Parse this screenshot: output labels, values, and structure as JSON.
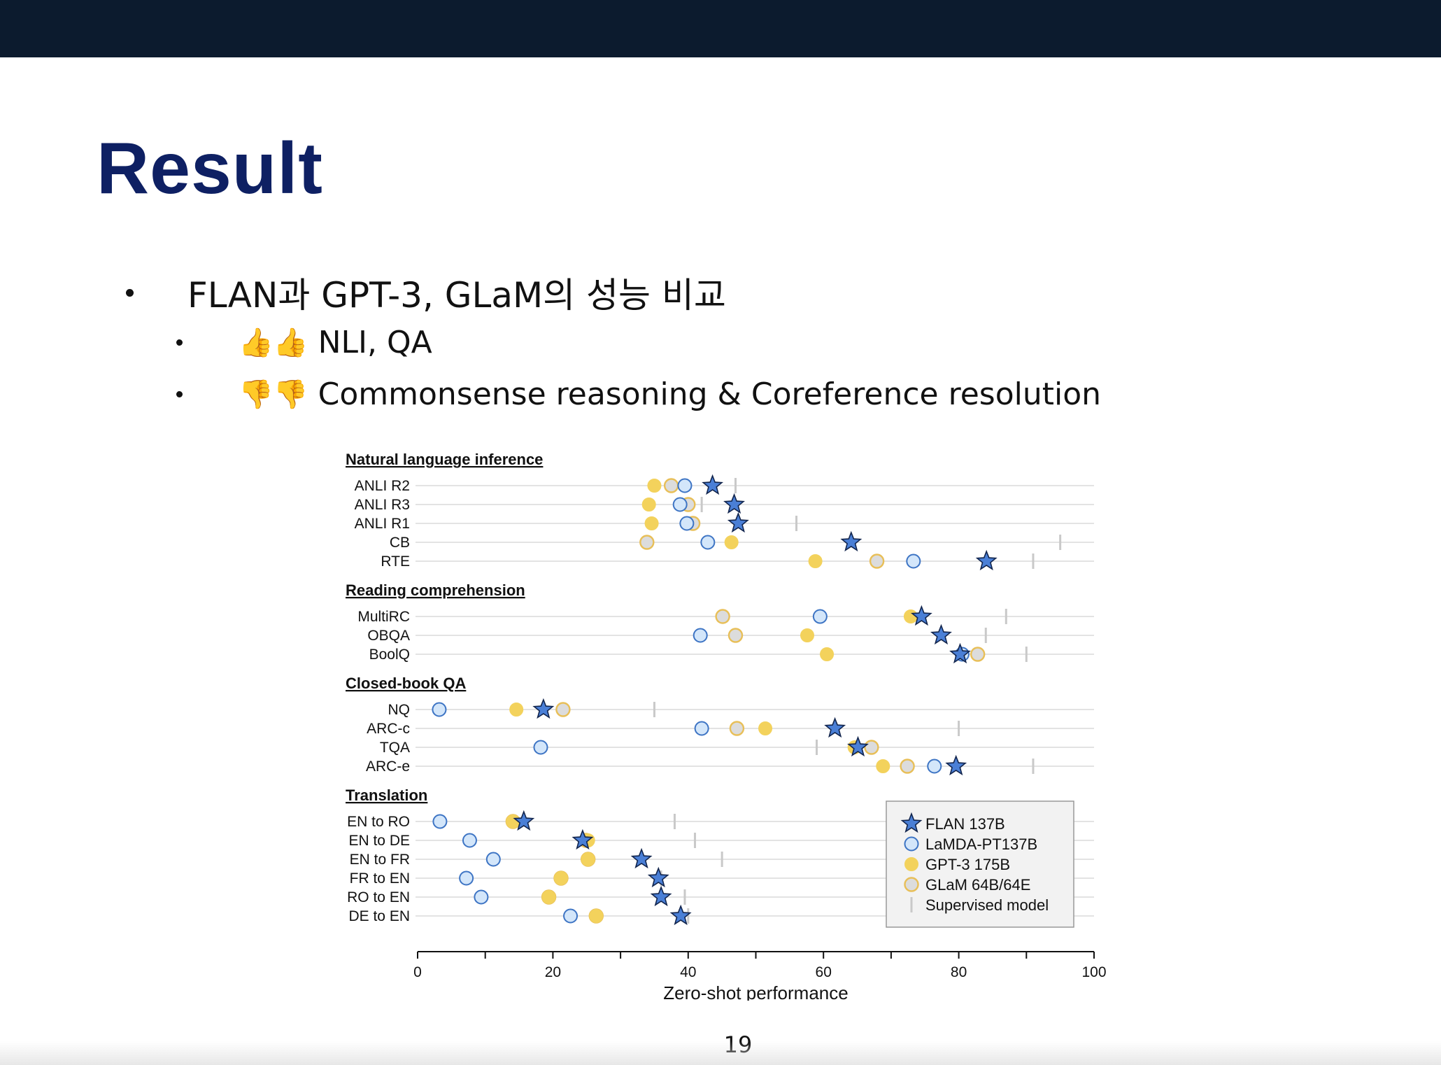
{
  "slide": {
    "title": "Result",
    "bullets": [
      {
        "text": "FLAN과 GPT-3, GLaM의 성능 비교"
      },
      {
        "icon": "thumbs-up-icon",
        "emoji": "👍👍",
        "text": "NLI, QA"
      },
      {
        "icon": "thumbs-down-icon",
        "emoji": "👎👎",
        "text": "Commonsense reasoning & Coreference resolution"
      }
    ],
    "page_number": "19"
  },
  "chart_data": {
    "type": "scatter",
    "xlabel": "Zero-shot performance",
    "xlim": [
      0,
      100
    ],
    "xticks": [
      0,
      20,
      40,
      60,
      80,
      100
    ],
    "series_keys": [
      "flan",
      "lamda",
      "gpt3",
      "glam",
      "supervised"
    ],
    "series": [
      {
        "name": "FLAN 137B",
        "key": "flan",
        "marker": "star",
        "color": "#4a7fd6"
      },
      {
        "name": "LaMDA-PT137B",
        "key": "lamda",
        "marker": "circle-open",
        "color": "#a9cdf2"
      },
      {
        "name": "GPT-3 175B",
        "key": "gpt3",
        "marker": "circle",
        "color": "#f3d25c"
      },
      {
        "name": "GLaM 64B/64E",
        "key": "glam",
        "marker": "circle-tan",
        "color": "#e4d4b0"
      },
      {
        "name": "Supervised model",
        "key": "supervised",
        "marker": "tick",
        "color": "#cccccc"
      }
    ],
    "legend_position": "bottom-right",
    "groups": [
      {
        "title": "Natural language inference",
        "rows": [
          {
            "label": "ANLI R2",
            "flan": 43.6,
            "lamda": 39.5,
            "gpt3": 35.0,
            "glam": 37.5,
            "supervised": 47.0
          },
          {
            "label": "ANLI R3",
            "flan": 46.8,
            "lamda": 38.8,
            "gpt3": 34.2,
            "glam": 40.0,
            "supervised": 42.0
          },
          {
            "label": "ANLI R1",
            "flan": 47.4,
            "lamda": 39.8,
            "gpt3": 34.6,
            "glam": 40.7,
            "supervised": 56.0
          },
          {
            "label": "CB",
            "flan": 64.1,
            "lamda": 42.9,
            "gpt3": 46.4,
            "glam": 33.9,
            "supervised": 95.0
          },
          {
            "label": "RTE",
            "flan": 84.1,
            "lamda": 73.3,
            "gpt3": 58.8,
            "glam": 67.9,
            "supervised": 91.0
          }
        ]
      },
      {
        "title": "Reading comprehension",
        "rows": [
          {
            "label": "MultiRC",
            "flan": 74.5,
            "lamda": 59.5,
            "gpt3": 72.9,
            "glam": 45.1,
            "supervised": 87.0
          },
          {
            "label": "OBQA",
            "flan": 77.4,
            "lamda": 41.8,
            "gpt3": 57.6,
            "glam": 47.0,
            "supervised": 84.0
          },
          {
            "label": "BoolQ",
            "flan": 80.2,
            "lamda": 80.5,
            "gpt3": 60.5,
            "glam": 82.8,
            "supervised": 90.0
          }
        ]
      },
      {
        "title": "Closed-book QA",
        "rows": [
          {
            "label": "NQ",
            "flan": 18.6,
            "lamda": 3.2,
            "gpt3": 14.6,
            "glam": 21.5,
            "supervised": 35.0
          },
          {
            "label": "ARC-c",
            "flan": 61.7,
            "lamda": 42.0,
            "gpt3": 51.4,
            "glam": 47.2,
            "supervised": 80.0
          },
          {
            "label": "TQA",
            "flan": 65.1,
            "lamda": 18.2,
            "gpt3": 64.6,
            "glam": 67.1,
            "supervised": 59.0
          },
          {
            "label": "ARC-e",
            "flan": 79.6,
            "lamda": 76.4,
            "gpt3": 68.8,
            "glam": 72.4,
            "supervised": 91.0
          }
        ]
      },
      {
        "title": "Translation",
        "rows": [
          {
            "label": "EN to RO",
            "flan": 15.7,
            "lamda": 3.3,
            "gpt3": 14.1,
            "glam": 14.1,
            "supervised": 38.0
          },
          {
            "label": "EN to DE",
            "flan": 24.4,
            "lamda": 7.7,
            "gpt3": 25.2,
            "glam": 24.9,
            "supervised": 41.0
          },
          {
            "label": "EN to FR",
            "flan": 33.1,
            "lamda": 11.2,
            "gpt3": 25.2,
            "glam": 25.2,
            "supervised": 45.0
          },
          {
            "label": "FR to EN",
            "flan": 35.6,
            "lamda": 7.2,
            "gpt3": 21.2,
            "glam": 21.2,
            "supervised": 36.0
          },
          {
            "label": "RO to EN",
            "flan": 36.0,
            "lamda": 9.4,
            "gpt3": 19.4,
            "glam": 19.4,
            "supervised": 39.5
          },
          {
            "label": "DE to EN",
            "flan": 38.9,
            "lamda": 22.6,
            "gpt3": 26.4,
            "glam": 26.4,
            "supervised": 40.0
          }
        ]
      }
    ]
  }
}
